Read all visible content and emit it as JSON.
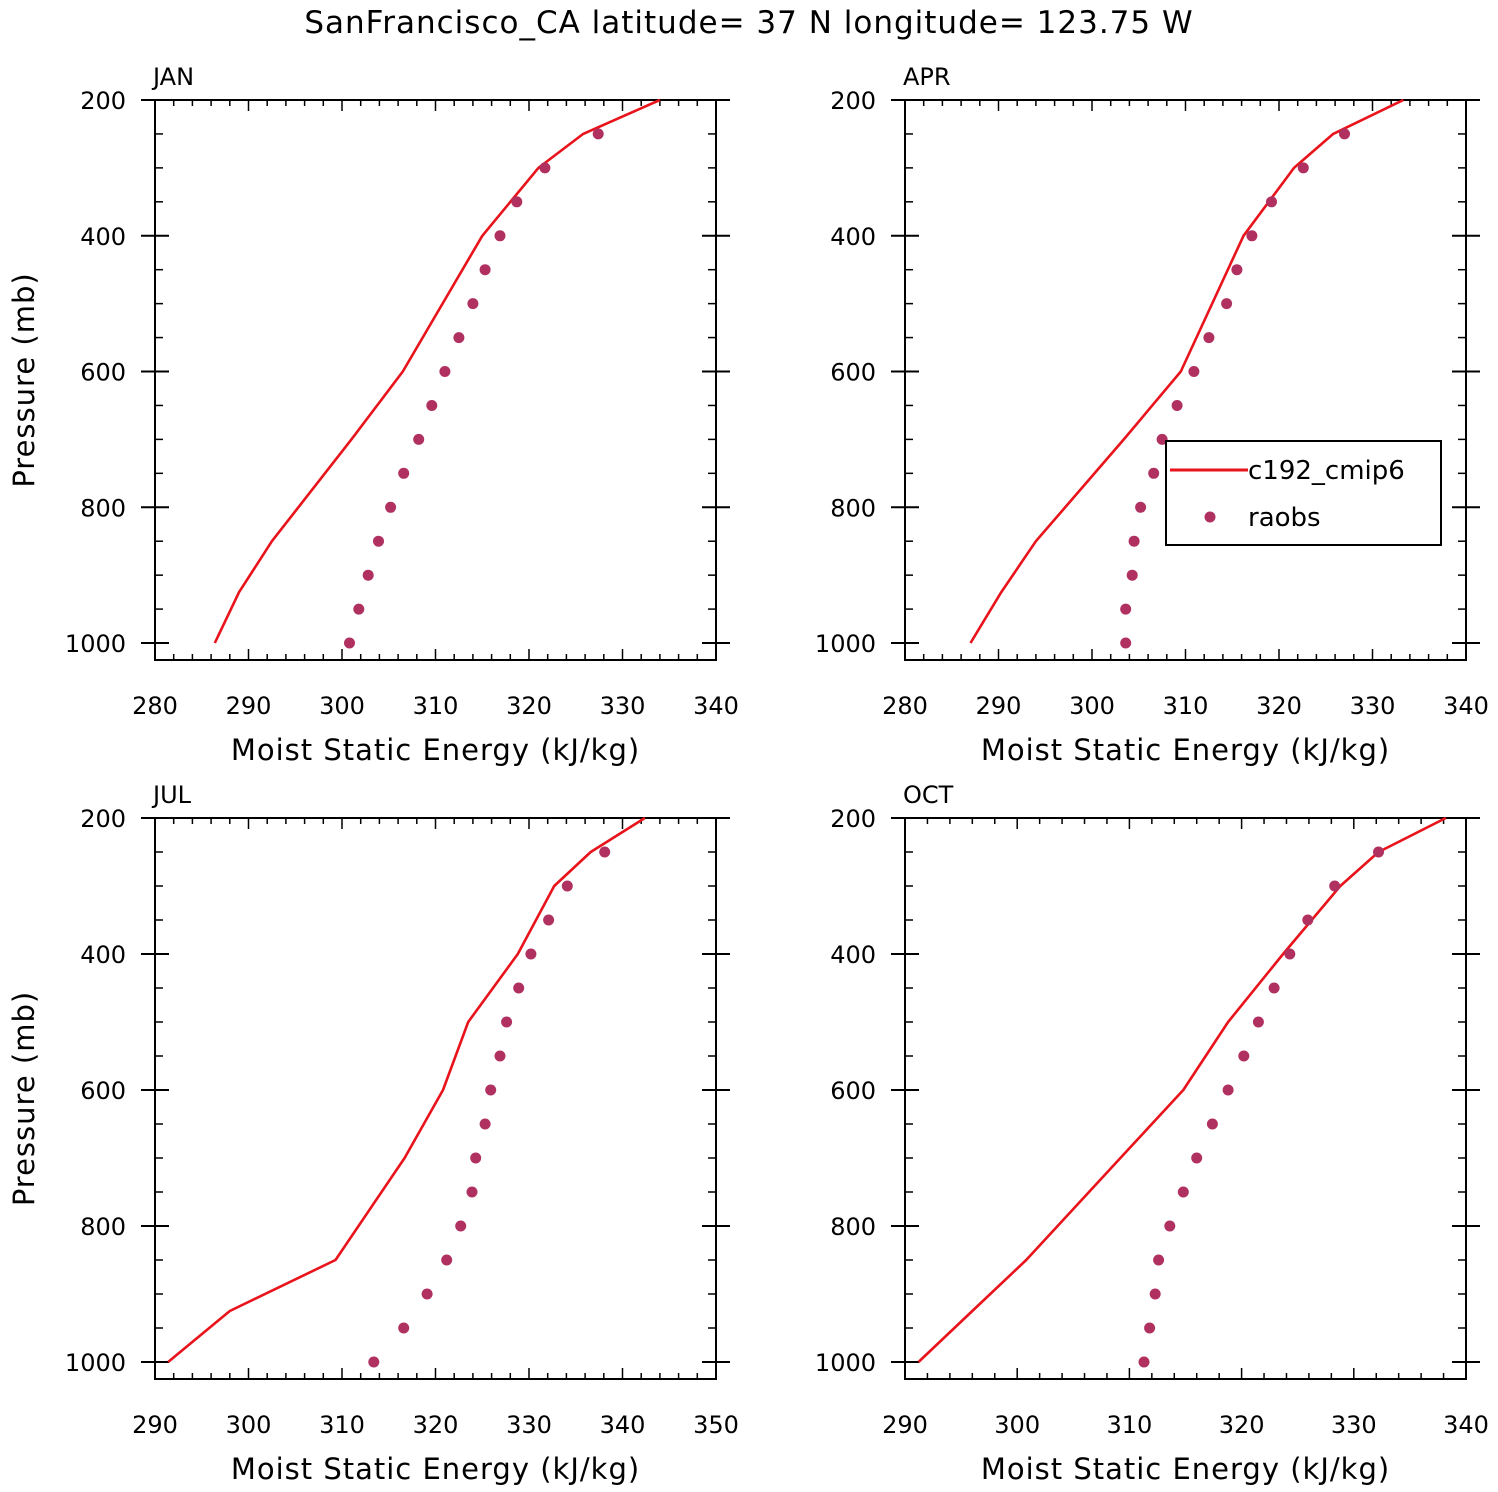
{
  "title": "SanFrancisco_CA  latitude= 37 N longitude= 123.75 W",
  "colors": {
    "model": "#e8131b",
    "obs": "#b03060",
    "axes": "#000000",
    "background": "#ffffff"
  },
  "legend": {
    "model_label": "c192_cmip6",
    "obs_label": "raobs",
    "placement": "inside APR panel, right, mid-height"
  },
  "chart_data": [
    {
      "type": "line+scatter",
      "panel": "JAN",
      "xlabel": "Moist Static Energy (kJ/kg)",
      "ylabel": "Pressure (mb)",
      "xlim": [
        280,
        340
      ],
      "xticks": [
        280,
        290,
        300,
        310,
        320,
        330,
        340
      ],
      "ylim": [
        1025,
        200
      ],
      "yticks": [
        200,
        400,
        600,
        800,
        1000
      ],
      "series": [
        {
          "name": "c192_cmip6",
          "kind": "line",
          "x": [
            286.4,
            289.0,
            292.5,
            301.0,
            306.5,
            315.0,
            321.0,
            325.8,
            334.0
          ],
          "y": [
            1000,
            925,
            850,
            700,
            600,
            400,
            300,
            250,
            200
          ]
        },
        {
          "name": "raobs",
          "kind": "points",
          "x": [
            300.8,
            301.8,
            302.8,
            303.9,
            305.2,
            306.6,
            308.2,
            309.6,
            311.0,
            312.5,
            314.0,
            315.3,
            316.9,
            318.7,
            321.7,
            327.4
          ],
          "y": [
            1000,
            950,
            900,
            850,
            800,
            750,
            700,
            650,
            600,
            550,
            500,
            450,
            400,
            350,
            300,
            250
          ]
        }
      ]
    },
    {
      "type": "line+scatter",
      "panel": "APR",
      "xlabel": "Moist Static Energy (kJ/kg)",
      "ylabel": "",
      "xlim": [
        280,
        340
      ],
      "xticks": [
        280,
        290,
        300,
        310,
        320,
        330,
        340
      ],
      "ylim": [
        1025,
        200
      ],
      "yticks": [
        200,
        400,
        600,
        800,
        1000
      ],
      "series": [
        {
          "name": "c192_cmip6",
          "kind": "line",
          "x": [
            287.0,
            290.3,
            294.0,
            303.4,
            309.5,
            316.2,
            321.6,
            325.8,
            333.3
          ],
          "y": [
            1000,
            925,
            850,
            700,
            600,
            400,
            300,
            250,
            200
          ]
        },
        {
          "name": "raobs",
          "kind": "points",
          "x": [
            303.6,
            303.6,
            304.3,
            304.5,
            305.2,
            306.6,
            307.5,
            309.1,
            310.9,
            312.5,
            314.4,
            315.5,
            317.1,
            319.2,
            322.6,
            327.0
          ],
          "y": [
            1000,
            950,
            900,
            850,
            800,
            750,
            700,
            650,
            600,
            550,
            500,
            450,
            400,
            350,
            300,
            250
          ]
        }
      ]
    },
    {
      "type": "line+scatter",
      "panel": "JUL",
      "xlabel": "Moist Static Energy (kJ/kg)",
      "ylabel": "Pressure (mb)",
      "xlim": [
        290,
        350
      ],
      "xticks": [
        290,
        300,
        310,
        320,
        330,
        340,
        350
      ],
      "ylim": [
        1025,
        200
      ],
      "yticks": [
        200,
        400,
        600,
        800,
        1000
      ],
      "series": [
        {
          "name": "c192_cmip6",
          "kind": "line",
          "x": [
            291.4,
            298.0,
            309.3,
            316.7,
            320.8,
            323.5,
            328.8,
            332.7,
            336.6,
            342.4
          ],
          "y": [
            1000,
            925,
            850,
            700,
            600,
            500,
            400,
            300,
            250,
            200
          ]
        },
        {
          "name": "raobs",
          "kind": "points",
          "x": [
            313.4,
            316.6,
            319.1,
            321.2,
            322.7,
            323.9,
            324.3,
            325.3,
            325.9,
            326.9,
            327.6,
            328.9,
            330.2,
            332.1,
            334.1,
            338.1
          ],
          "y": [
            1000,
            950,
            900,
            850,
            800,
            750,
            700,
            650,
            600,
            550,
            500,
            450,
            400,
            350,
            300,
            250
          ]
        }
      ]
    },
    {
      "type": "line+scatter",
      "panel": "OCT",
      "xlabel": "Moist Static Energy (kJ/kg)",
      "ylabel": "",
      "xlim": [
        290,
        340
      ],
      "xticks": [
        290,
        300,
        310,
        320,
        330,
        340
      ],
      "ylim": [
        1025,
        200
      ],
      "yticks": [
        200,
        400,
        600,
        800,
        1000
      ],
      "series": [
        {
          "name": "c192_cmip6",
          "kind": "line",
          "x": [
            291.2,
            296.0,
            300.8,
            309.2,
            314.8,
            318.8,
            323.7,
            328.8,
            332.2,
            338.2
          ],
          "y": [
            1000,
            925,
            850,
            700,
            600,
            500,
            400,
            300,
            250,
            200
          ]
        },
        {
          "name": "raobs",
          "kind": "points",
          "x": [
            311.3,
            311.8,
            312.3,
            312.6,
            313.6,
            314.8,
            316.0,
            317.4,
            318.8,
            320.2,
            321.5,
            322.9,
            324.3,
            325.9,
            328.3,
            332.2
          ],
          "y": [
            1000,
            950,
            900,
            850,
            800,
            750,
            700,
            650,
            600,
            550,
            500,
            450,
            400,
            350,
            300,
            250
          ]
        }
      ]
    }
  ]
}
